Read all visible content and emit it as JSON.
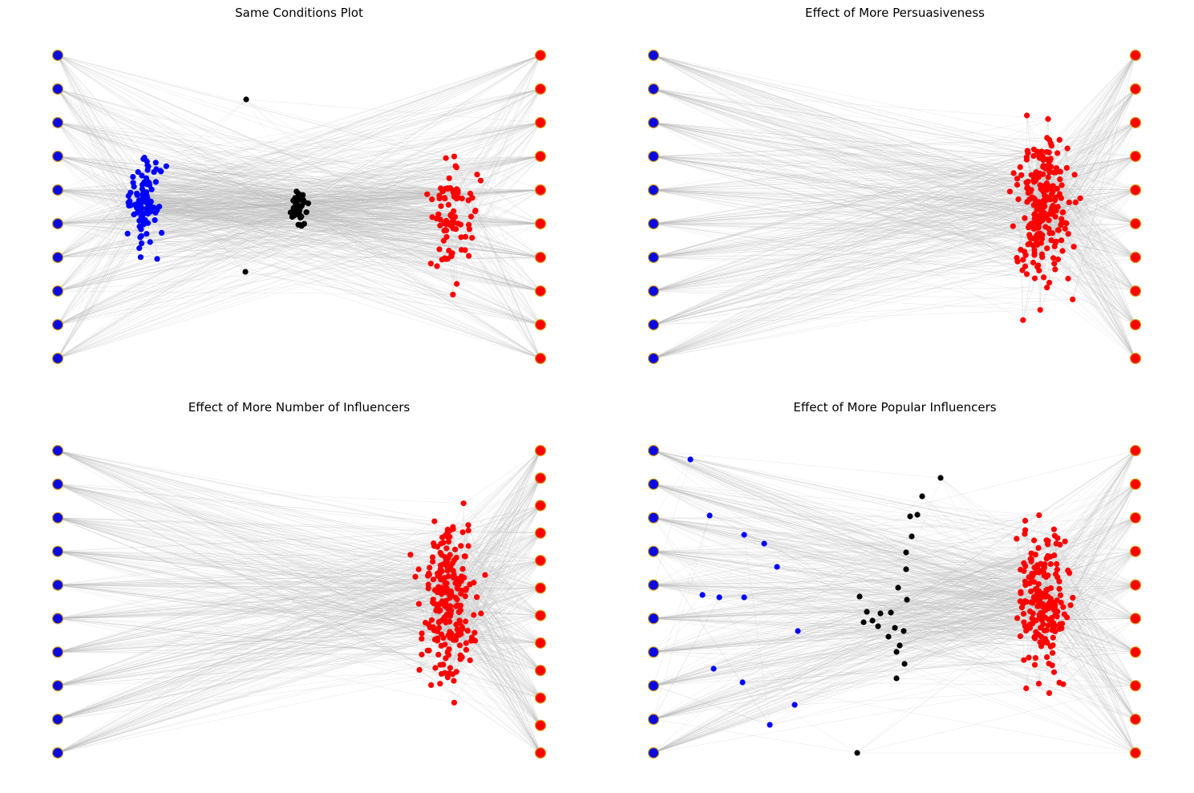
{
  "colors": {
    "left_influencer_fill": "#0a0ae0",
    "right_influencer_fill": "#ff0000",
    "influencer_outline": "#d4a017",
    "blue_node": "#0000ff",
    "red_node": "#ff0000",
    "black_node": "#000000",
    "edge": "#b8b8b8"
  },
  "panels": [
    {
      "title": "Same Conditions Plot",
      "left_influencers": 10,
      "right_influencers": 10,
      "cluster_counts": {
        "blue": 95,
        "black": 40,
        "red": 85
      },
      "isolated_black_nodes": 2
    },
    {
      "title": "Effect of More Persuasiveness",
      "left_influencers": 10,
      "right_influencers": 10,
      "cluster_counts": {
        "blue": 0,
        "black": 0,
        "red": 230
      },
      "isolated_black_nodes": 0
    },
    {
      "title": "Effect of More Number of Influencers",
      "left_influencers": 10,
      "right_influencers": 12,
      "cluster_counts": {
        "blue": 0,
        "black": 0,
        "red": 230
      },
      "isolated_black_nodes": 0
    },
    {
      "title": "Effect of More Popular Influencers",
      "left_influencers": 10,
      "right_influencers": 10,
      "cluster_counts": {
        "blue": 12,
        "black": 23,
        "red": 200
      },
      "isolated_black_nodes": 0
    }
  ]
}
